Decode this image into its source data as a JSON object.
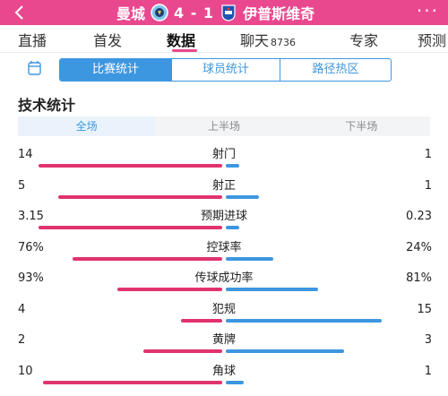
{
  "header": {
    "back_icon": "chevron-left-icon",
    "home_team": "曼城",
    "score": "4 - 1",
    "away_team": "伊普斯维奇",
    "home_crest_icon": "man-city-crest-icon",
    "away_crest_icon": "ipswich-crest-icon",
    "more_label": "···",
    "background_color": "#e9488f"
  },
  "tabs": [
    {
      "label": "直播",
      "count": ""
    },
    {
      "label": "首发",
      "count": ""
    },
    {
      "label": "数据",
      "count": "",
      "active": true
    },
    {
      "label": "聊天",
      "count": "8736"
    },
    {
      "label": "专家",
      "count": ""
    },
    {
      "label": "预测",
      "count": ""
    }
  ],
  "segments": [
    {
      "label": "比赛统计",
      "active": true
    },
    {
      "label": "球员统计",
      "active": false
    },
    {
      "label": "路径热区",
      "active": false
    }
  ],
  "section_title": "技术统计",
  "periods": [
    {
      "label": "全场",
      "active": true
    },
    {
      "label": "上半场",
      "active": false
    },
    {
      "label": "下半场",
      "active": false
    }
  ],
  "stats": [
    {
      "label": "射门",
      "home": "14",
      "away": "1",
      "home_frac": 0.93,
      "away_frac": 0.07
    },
    {
      "label": "射正",
      "home": "5",
      "away": "1",
      "home_frac": 0.83,
      "away_frac": 0.17
    },
    {
      "label": "预期进球",
      "home": "3.15",
      "away": "0.23",
      "home_frac": 0.93,
      "away_frac": 0.07
    },
    {
      "label": "控球率",
      "home": "76%",
      "away": "24%",
      "home_frac": 0.76,
      "away_frac": 0.24
    },
    {
      "label": "传球成功率",
      "home": "93%",
      "away": "81%",
      "home_frac": 0.53,
      "away_frac": 0.47
    },
    {
      "label": "犯规",
      "home": "4",
      "away": "15",
      "home_frac": 0.21,
      "away_frac": 0.79
    },
    {
      "label": "黄牌",
      "home": "2",
      "away": "3",
      "home_frac": 0.4,
      "away_frac": 0.6
    },
    {
      "label": "角球",
      "home": "10",
      "away": "1",
      "home_frac": 0.91,
      "away_frac": 0.09
    }
  ],
  "colors": {
    "accent": "#e9488f",
    "home_bar": "#e0336c",
    "away_bar": "#3d96e0",
    "active_blue": "#3d96e0"
  }
}
